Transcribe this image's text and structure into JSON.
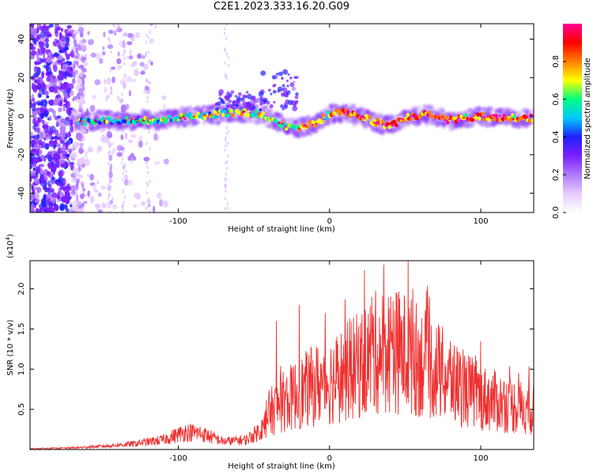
{
  "title": "C2E1.2023.333.16.20.G09",
  "chart_data": [
    {
      "type": "heatmap",
      "xlabel": "Height of straight line (km)",
      "ylabel": "Frequency (Hz)",
      "xlim": [
        -198,
        135
      ],
      "ylim": [
        -50,
        48
      ],
      "xticks": [
        -100,
        0,
        100
      ],
      "yticks": [
        -40,
        -20,
        0,
        20,
        40
      ],
      "colorbar": {
        "label": "Normalized spectral amplitude",
        "range": [
          0,
          1
        ],
        "ticks": [
          "0.0",
          "0.2",
          "0.4",
          "0.6",
          "0.8"
        ],
        "colors": [
          "#ffffff",
          "#e6ccff",
          "#b07aff",
          "#7b1fff",
          "#2020ff",
          "#00c8ff",
          "#00ff80",
          "#ffff00",
          "#ff7f00",
          "#ff0000",
          "#ff0090"
        ]
      },
      "ridge": [
        {
          "x": -165,
          "y": -3
        },
        {
          "x": -150,
          "y": -2
        },
        {
          "x": -130,
          "y": -2
        },
        {
          "x": -110,
          "y": -2
        },
        {
          "x": -90,
          "y": 0
        },
        {
          "x": -75,
          "y": 1
        },
        {
          "x": -60,
          "y": 2
        },
        {
          "x": -45,
          "y": 1
        },
        {
          "x": -30,
          "y": -5
        },
        {
          "x": -20,
          "y": -6
        },
        {
          "x": -10,
          "y": -4
        },
        {
          "x": 0,
          "y": 1
        },
        {
          "x": 10,
          "y": 2
        },
        {
          "x": 20,
          "y": 0
        },
        {
          "x": 30,
          "y": -3
        },
        {
          "x": 40,
          "y": -5
        },
        {
          "x": 50,
          "y": -1
        },
        {
          "x": 65,
          "y": 1
        },
        {
          "x": 80,
          "y": -2
        },
        {
          "x": 100,
          "y": 0
        },
        {
          "x": 120,
          "y": -1
        },
        {
          "x": 135,
          "y": -1
        }
      ]
    },
    {
      "type": "line",
      "xlabel": "Height of straight line (km)",
      "ylabel": "SNR (10 * v/v)",
      "multiplier": "(x10^4)",
      "xlim": [
        -198,
        135
      ],
      "ylim": [
        0,
        2.35
      ],
      "xticks": [
        -100,
        0,
        100
      ],
      "yticks": [
        "0.5",
        "1.0",
        "1.5",
        "2.0"
      ],
      "color": "#ee3030",
      "envelope": [
        {
          "x": -198,
          "y": 0.01
        },
        {
          "x": -170,
          "y": 0.02
        },
        {
          "x": -150,
          "y": 0.04
        },
        {
          "x": -130,
          "y": 0.07
        },
        {
          "x": -110,
          "y": 0.12
        },
        {
          "x": -95,
          "y": 0.22
        },
        {
          "x": -85,
          "y": 0.2
        },
        {
          "x": -70,
          "y": 0.1
        },
        {
          "x": -55,
          "y": 0.12
        },
        {
          "x": -45,
          "y": 0.25
        },
        {
          "x": -40,
          "y": 0.45
        },
        {
          "x": -30,
          "y": 0.6
        },
        {
          "x": -20,
          "y": 0.7
        },
        {
          "x": -10,
          "y": 0.8
        },
        {
          "x": 0,
          "y": 0.85
        },
        {
          "x": 10,
          "y": 0.95
        },
        {
          "x": 20,
          "y": 1.05
        },
        {
          "x": 30,
          "y": 1.2
        },
        {
          "x": 40,
          "y": 1.25
        },
        {
          "x": 50,
          "y": 1.2
        },
        {
          "x": 60,
          "y": 1.1
        },
        {
          "x": 70,
          "y": 1.0
        },
        {
          "x": 80,
          "y": 0.85
        },
        {
          "x": 90,
          "y": 0.75
        },
        {
          "x": 100,
          "y": 0.65
        },
        {
          "x": 110,
          "y": 0.6
        },
        {
          "x": 120,
          "y": 0.55
        },
        {
          "x": 135,
          "y": 0.5
        }
      ],
      "spikes": [
        {
          "x": -35,
          "y": 1.6
        },
        {
          "x": -20,
          "y": 1.8
        },
        {
          "x": 28,
          "y": 1.9
        },
        {
          "x": 42,
          "y": 1.85
        },
        {
          "x": 52,
          "y": 2.35
        },
        {
          "x": 55,
          "y": 2.0
        },
        {
          "x": 80,
          "y": 1.35
        },
        {
          "x": 100,
          "y": 1.35
        }
      ]
    }
  ]
}
